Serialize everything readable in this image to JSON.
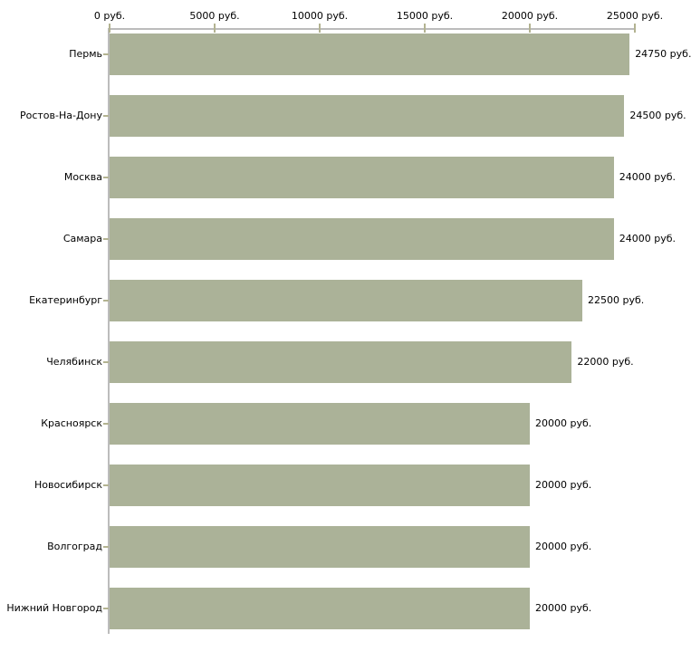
{
  "chart_data": {
    "type": "bar",
    "orientation": "horizontal",
    "title": "",
    "xlabel": "",
    "ylabel": "",
    "categories": [
      "Пермь",
      "Ростов-На-Дону",
      "Москва",
      "Самара",
      "Екатеринбург",
      "Челябинск",
      "Красноярск",
      "Новосибирск",
      "Волгоград",
      "Нижний Новгород"
    ],
    "values": [
      24750,
      24500,
      24000,
      24000,
      22500,
      22000,
      20000,
      20000,
      20000,
      20000
    ],
    "value_labels": [
      "24750 руб.",
      "24500 руб.",
      "24000 руб.",
      "24000 руб.",
      "22500 руб.",
      "22000 руб.",
      "20000 руб.",
      "20000 руб.",
      "20000 руб.",
      "20000 руб."
    ],
    "x_axis": {
      "position": "top",
      "min": 0,
      "max": 25000,
      "ticks": [
        0,
        5000,
        10000,
        15000,
        20000,
        25000
      ],
      "tick_labels": [
        "0 руб.",
        "5000 руб.",
        "10000 руб.",
        "15000 руб.",
        "20000 руб.",
        "25000 руб."
      ]
    },
    "legend": null,
    "grid": false,
    "colors": {
      "bar": "#abb298",
      "axis_line": "#bcbcbc",
      "tick_mark": "#b3b391",
      "text": "#000000",
      "background": "#ffffff"
    }
  }
}
